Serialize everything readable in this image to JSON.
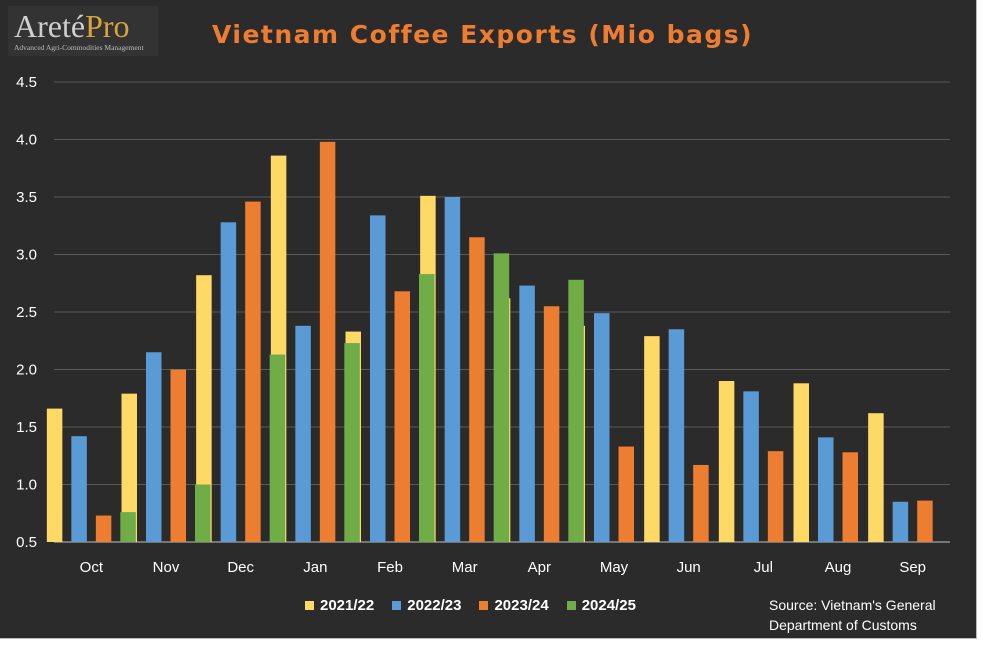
{
  "logo": {
    "brand_main": "Areté",
    "brand_accent": "Pro",
    "tagline": "Advanced Agri-Commodities Management"
  },
  "source": {
    "line1": "Source: Vietnam's General",
    "line2": "Department of Customs"
  },
  "chart_data": {
    "type": "bar",
    "title": "Vietnam Coffee Exports (Mio bags)",
    "xlabel": "",
    "ylabel": "",
    "ylim": [
      0.5,
      4.5
    ],
    "yticks": [
      "0.5",
      "1.0",
      "1.5",
      "2.0",
      "2.5",
      "3.0",
      "3.5",
      "4.0",
      "4.5"
    ],
    "grid": true,
    "legend_position": "bottom",
    "categories": [
      "Oct",
      "Nov",
      "Dec",
      "Jan",
      "Feb",
      "Mar",
      "Apr",
      "May",
      "Jun",
      "Jul",
      "Aug",
      "Sep"
    ],
    "series": [
      {
        "name": "2021/22",
        "color": "#ffd966",
        "values": [
          1.66,
          1.79,
          2.82,
          3.86,
          2.33,
          3.51,
          2.62,
          2.38,
          2.29,
          1.9,
          1.88,
          1.62
        ]
      },
      {
        "name": "2022/23",
        "color": "#5b9bd5",
        "values": [
          1.42,
          2.15,
          3.28,
          2.38,
          3.34,
          3.5,
          2.73,
          2.49,
          2.35,
          1.81,
          1.41,
          0.85
        ]
      },
      {
        "name": "2023/24",
        "color": "#ed7d31",
        "values": [
          0.73,
          2.0,
          3.46,
          3.98,
          2.68,
          3.15,
          2.55,
          1.33,
          1.17,
          1.29,
          1.28,
          0.86
        ]
      },
      {
        "name": "2024/25",
        "color": "#70ad47",
        "values": [
          0.76,
          1.0,
          2.13,
          2.23,
          2.83,
          3.01,
          2.78,
          null,
          null,
          null,
          null,
          null
        ]
      }
    ]
  }
}
